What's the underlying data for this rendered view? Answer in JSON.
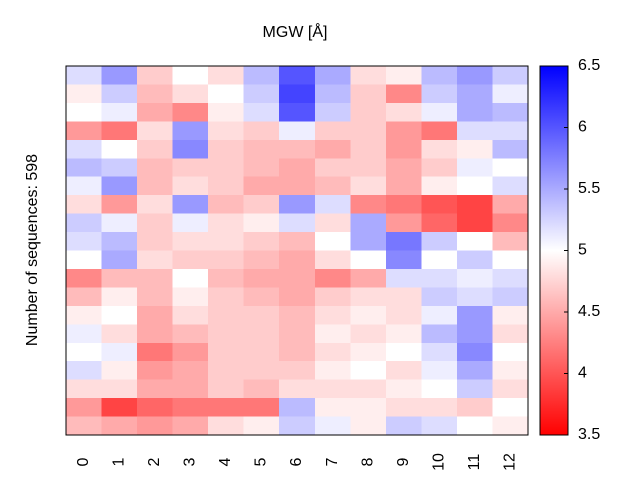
{
  "chart_data": {
    "type": "heatmap",
    "title": "MGW [Å]",
    "ylabel": "Number of sequences: 598",
    "categories": [
      "0",
      "1",
      "2",
      "3",
      "4",
      "5",
      "6",
      "7",
      "8",
      "9",
      "10",
      "11",
      "12"
    ],
    "z": [
      [
        5.2,
        5.6,
        4.7,
        5.0,
        4.8,
        5.4,
        6.0,
        5.5,
        4.8,
        4.9,
        5.4,
        5.6,
        5.3
      ],
      [
        4.9,
        5.3,
        4.6,
        4.8,
        5.0,
        5.3,
        6.1,
        5.4,
        4.7,
        4.3,
        5.3,
        5.5,
        5.1
      ],
      [
        5.0,
        5.1,
        4.5,
        4.3,
        4.9,
        5.2,
        6.0,
        5.3,
        4.7,
        4.8,
        5.1,
        5.5,
        5.4
      ],
      [
        4.4,
        4.2,
        4.8,
        5.6,
        4.8,
        4.7,
        5.1,
        4.7,
        4.7,
        4.4,
        4.2,
        5.2,
        5.2
      ],
      [
        5.2,
        5.0,
        4.7,
        5.7,
        4.7,
        4.6,
        4.6,
        4.5,
        4.7,
        4.4,
        4.8,
        4.9,
        5.4
      ],
      [
        5.4,
        5.3,
        4.6,
        4.7,
        4.7,
        4.6,
        4.5,
        4.7,
        4.7,
        4.5,
        4.7,
        5.1,
        5.0
      ],
      [
        5.1,
        5.6,
        4.6,
        4.8,
        4.7,
        4.5,
        4.5,
        4.6,
        4.8,
        4.5,
        4.9,
        5.0,
        5.2
      ],
      [
        4.8,
        4.4,
        4.8,
        5.6,
        4.6,
        4.7,
        5.6,
        5.2,
        4.3,
        4.2,
        4.0,
        3.9,
        4.5
      ],
      [
        5.3,
        5.1,
        4.7,
        5.1,
        4.8,
        4.9,
        5.2,
        4.8,
        5.5,
        4.4,
        4.1,
        3.9,
        4.3
      ],
      [
        5.2,
        5.4,
        4.7,
        4.8,
        4.8,
        4.7,
        4.6,
        5.0,
        5.5,
        5.8,
        5.3,
        5.0,
        4.6
      ],
      [
        5.0,
        5.5,
        4.8,
        4.7,
        4.7,
        4.6,
        4.5,
        4.8,
        5.0,
        5.7,
        5.0,
        5.3,
        5.0
      ],
      [
        4.3,
        4.6,
        4.6,
        5.0,
        4.6,
        4.5,
        4.5,
        4.3,
        4.5,
        5.2,
        5.2,
        5.1,
        5.2
      ],
      [
        4.6,
        4.9,
        4.6,
        4.9,
        4.7,
        4.6,
        4.5,
        4.7,
        4.8,
        4.8,
        5.3,
        5.2,
        5.3
      ],
      [
        4.9,
        5.0,
        4.5,
        4.8,
        4.7,
        4.7,
        4.6,
        4.8,
        4.9,
        4.8,
        5.1,
        5.6,
        4.9
      ],
      [
        5.1,
        4.8,
        4.5,
        4.6,
        4.7,
        4.7,
        4.6,
        4.9,
        4.8,
        4.9,
        5.4,
        5.6,
        4.8
      ],
      [
        5.0,
        5.1,
        4.2,
        4.4,
        4.7,
        4.7,
        4.6,
        4.8,
        4.9,
        5.0,
        5.2,
        5.7,
        5.0
      ],
      [
        5.2,
        4.9,
        4.4,
        4.5,
        4.7,
        4.7,
        4.7,
        4.9,
        5.0,
        4.8,
        5.1,
        5.5,
        4.9
      ],
      [
        4.8,
        4.8,
        4.5,
        4.5,
        4.7,
        4.6,
        4.8,
        4.8,
        4.8,
        4.9,
        5.0,
        5.3,
        4.8
      ],
      [
        4.4,
        3.9,
        4.1,
        4.2,
        4.2,
        4.2,
        5.4,
        4.9,
        4.9,
        4.8,
        4.8,
        4.7,
        5.0
      ],
      [
        4.6,
        4.5,
        4.4,
        4.5,
        4.8,
        4.9,
        5.3,
        5.1,
        4.9,
        5.3,
        5.2,
        5.0,
        4.9
      ]
    ],
    "clim": [
      3.5,
      6.5
    ],
    "cticks": [
      3.5,
      4,
      4.5,
      5,
      5.5,
      6,
      6.5
    ],
    "cmap": [
      "#ff0000",
      "#ffffff",
      "#0000ff"
    ]
  }
}
